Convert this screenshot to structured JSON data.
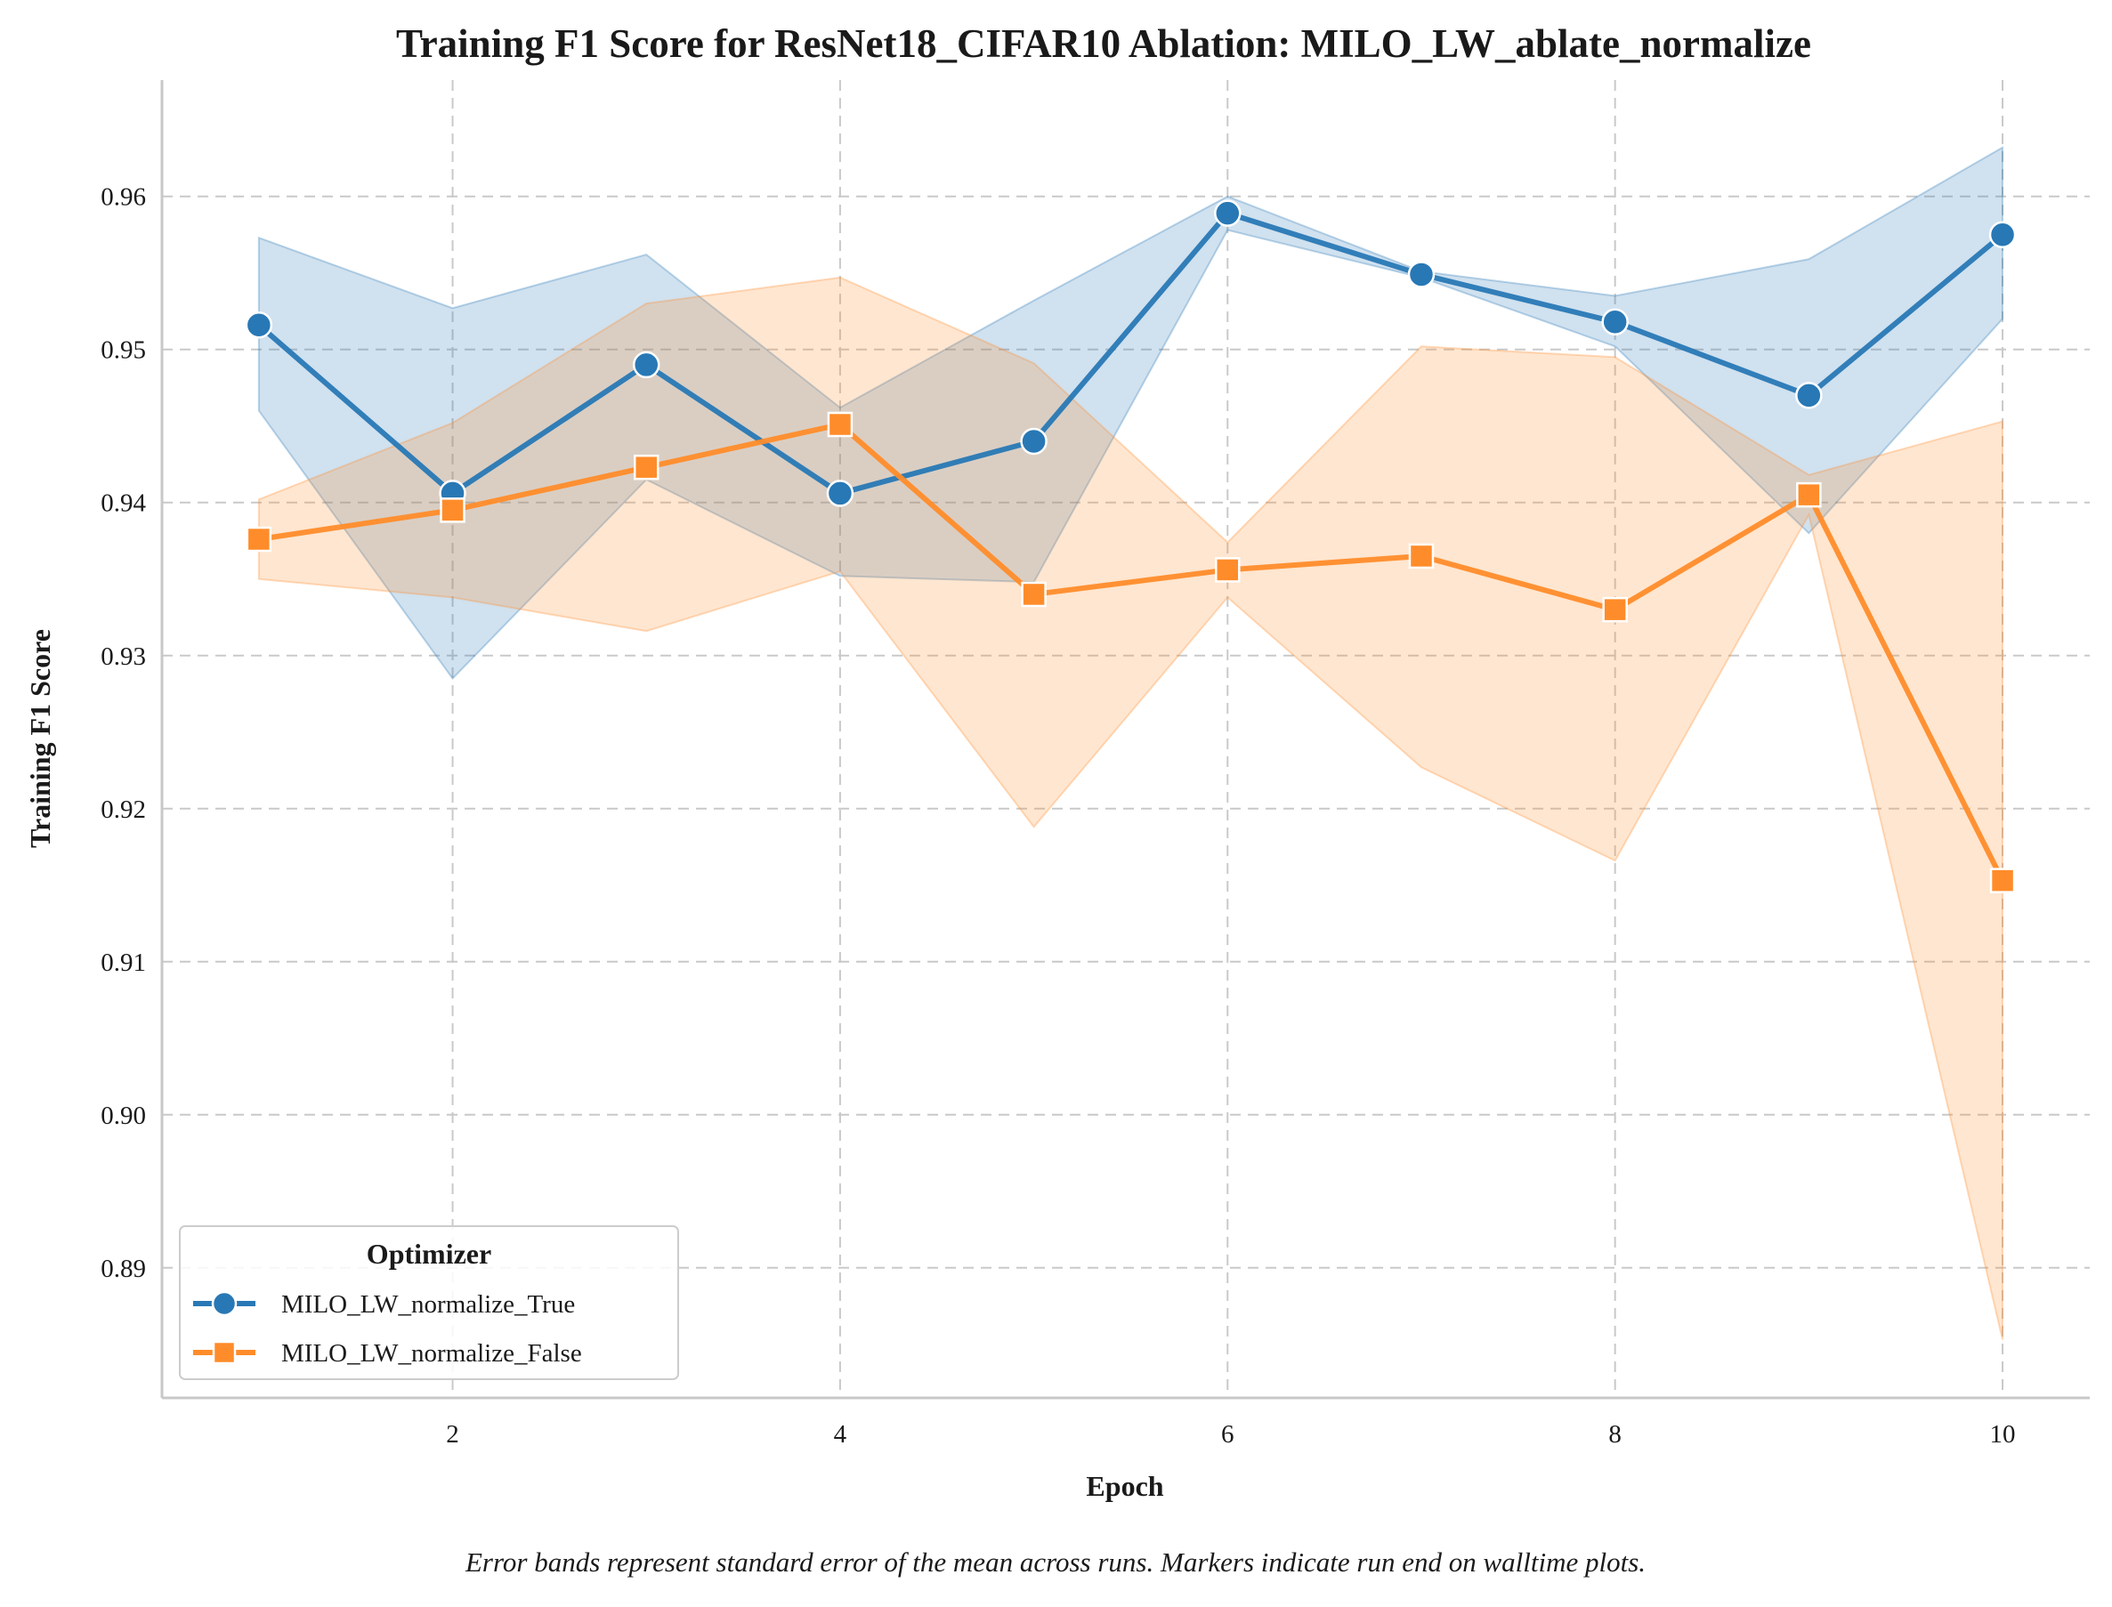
{
  "chart_data": {
    "type": "line",
    "title": "Training F1 Score for ResNet18_CIFAR10 Ablation: MILO_LW_ablate_normalize",
    "xlabel": "Epoch",
    "ylabel": "Training F1 Score",
    "caption": "Error bands represent standard error of the mean across runs. Markers indicate run end on walltime plots.",
    "xlim": [
      0.5,
      10.45
    ],
    "ylim": [
      0.8815,
      0.9676
    ],
    "x_ticks": [
      2,
      4,
      6,
      8,
      10
    ],
    "y_ticks": [
      0.89,
      0.9,
      0.91,
      0.92,
      0.93,
      0.94,
      0.95,
      0.96
    ],
    "y_tick_labels": [
      "0.89",
      "0.90",
      "0.91",
      "0.92",
      "0.93",
      "0.94",
      "0.95",
      "0.96"
    ],
    "grid": true,
    "legend": {
      "title": "Optimizer",
      "placement": "lower-left"
    },
    "x": [
      1,
      2,
      3,
      4,
      5,
      6,
      7,
      8,
      9,
      10
    ],
    "series": [
      {
        "name": "MILO_LW_normalize_True",
        "color": "#2878b5",
        "marker": "circle",
        "values": [
          0.9516,
          0.9406,
          0.949,
          0.9406,
          0.944,
          0.9589,
          0.9549,
          0.9518,
          0.947,
          0.9575
        ],
        "lower": [
          0.946,
          0.9285,
          0.9415,
          0.9352,
          0.9348,
          0.9578,
          0.9547,
          0.9502,
          0.938,
          0.952
        ],
        "upper": [
          0.9573,
          0.9527,
          0.9562,
          0.9462,
          0.9532,
          0.96,
          0.9551,
          0.9535,
          0.9559,
          0.9632
        ]
      },
      {
        "name": "MILO_LW_normalize_False",
        "color": "#ff8c2a",
        "marker": "square",
        "values": [
          0.9376,
          0.9395,
          0.9423,
          0.9451,
          0.934,
          0.9356,
          0.9365,
          0.933,
          0.9405,
          0.9153
        ],
        "lower": [
          0.935,
          0.9338,
          0.9316,
          0.9355,
          0.9188,
          0.9338,
          0.9227,
          0.9166,
          0.9392,
          0.8853
        ],
        "upper": [
          0.9402,
          0.9452,
          0.953,
          0.9547,
          0.9491,
          0.9374,
          0.9502,
          0.9495,
          0.9418,
          0.9453
        ]
      }
    ]
  }
}
